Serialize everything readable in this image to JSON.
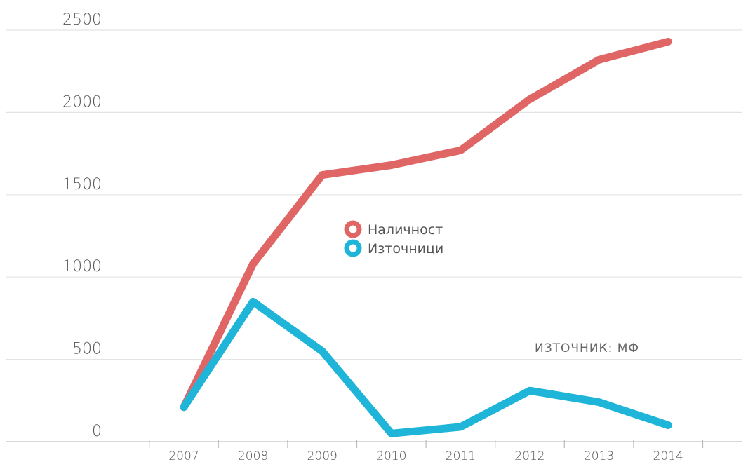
{
  "chart_data": {
    "type": "line",
    "x": [
      "2007",
      "2008",
      "2009",
      "2010",
      "2011",
      "2012",
      "2013",
      "2014"
    ],
    "yticks": [
      "0",
      "500",
      "1000",
      "1500",
      "2000",
      "2500"
    ],
    "ylim": [
      0,
      2500
    ],
    "grid": true,
    "legend_position": "center",
    "annotation": "ИЗТОЧНИК: МФ",
    "series": [
      {
        "name": "Наличност",
        "color": "#e06666",
        "values": [
          210,
          1080,
          1620,
          1680,
          1770,
          2080,
          2320,
          2430
        ]
      },
      {
        "name": "Източници",
        "color": "#1fb5d9",
        "values": [
          210,
          850,
          550,
          50,
          90,
          310,
          240,
          100
        ]
      }
    ]
  }
}
